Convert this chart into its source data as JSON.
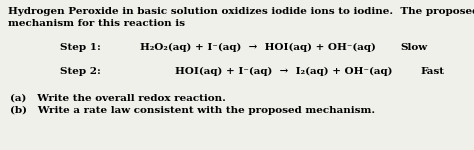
{
  "background_color": "#f0f0eb",
  "title_line1": "Hydrogen Peroxide in basic solution oxidizes iodide ions to iodine.  The proposed",
  "title_line2": "mechanism for this reaction is",
  "step1_label": "Step 1:",
  "step1_eq": "H₂O₂(aq) + I⁻(aq)  →  HOI(aq) + OH⁻(aq)",
  "step1_rate": "Slow",
  "step2_label": "Step 2:",
  "step2_eq": "HOI(aq) + I⁻(aq)  →  I₂(aq) + OH⁻(aq)",
  "step2_rate": "Fast",
  "qa": "(a)   Write the overall redox reaction.",
  "qb": "(b)   Write a rate law consistent with the proposed mechanism.",
  "fs": 7.5
}
